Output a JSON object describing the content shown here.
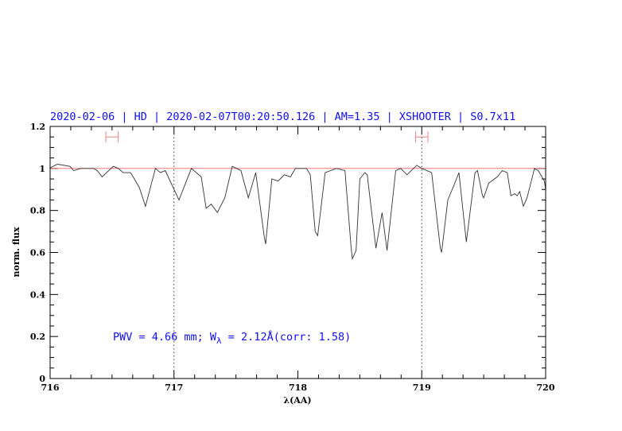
{
  "chart_data": {
    "type": "line",
    "title": "2020-02-06 | HD | 2020-02-07T00:20:50.126 | AM=1.35 | XSHOOTER | S0.7x11",
    "xlabel": "λ(AA)",
    "ylabel": "norm. flux",
    "xlim": [
      716,
      720
    ],
    "ylim": [
      0,
      1.2
    ],
    "xticks": [
      "716",
      "717",
      "718",
      "719",
      "720"
    ],
    "yticks": [
      "0",
      "0.2",
      "0.4",
      "0.6",
      "0.8",
      "1",
      "1.2"
    ],
    "grid": false,
    "continuum_level": 1.0,
    "vertical_markers": [
      717,
      719
    ],
    "intervals": [
      {
        "from": 716.45,
        "to": 716.55,
        "y": 1.15
      },
      {
        "from": 718.95,
        "to": 719.05,
        "y": 1.15
      }
    ],
    "annotation": {
      "pwv": "PWV = 4.66 mm; W",
      "subscript": "λ",
      "rest": " = 2.12Å(corr: 1.58)"
    },
    "colors": {
      "spectrum": "#333333",
      "continuum": "#ee6666",
      "intervals": "#f08080",
      "text": "#1010ee"
    },
    "series": [
      {
        "x": [
          716.0,
          716.01,
          716.06,
          716.16,
          716.19,
          716.25,
          716.35,
          716.38,
          716.42,
          716.51,
          716.55,
          716.59,
          716.65,
          716.72,
          716.77,
          716.85,
          716.89,
          716.93,
          717.04,
          717.14,
          717.22,
          717.26,
          717.3,
          717.35,
          717.41,
          717.47,
          717.54,
          717.6,
          717.66,
          717.73,
          717.74,
          717.79,
          717.84,
          717.89,
          717.94,
          717.98,
          718.07,
          718.1,
          718.14,
          718.16,
          718.22,
          718.31,
          718.38,
          718.43,
          718.44,
          718.47,
          718.5,
          718.54,
          718.56,
          718.63,
          718.68,
          718.72,
          718.79,
          718.83,
          718.88,
          718.96,
          719.0,
          719.08,
          719.15,
          719.16,
          719.21,
          719.26,
          719.3,
          719.36,
          719.43,
          719.45,
          719.49,
          719.5,
          719.54,
          719.61,
          719.65,
          719.69,
          719.72,
          719.75,
          719.77,
          719.79,
          719.82,
          719.85,
          719.91,
          719.94,
          719.99,
          720.0
        ],
        "y": [
          1.0,
          1.006,
          1.02,
          1.01,
          0.99,
          1.0,
          1.0,
          0.99,
          0.96,
          1.01,
          1.0,
          0.98,
          0.98,
          0.91,
          0.82,
          1.0,
          0.98,
          0.99,
          0.85,
          1.0,
          0.96,
          0.81,
          0.83,
          0.79,
          0.86,
          1.01,
          0.99,
          0.86,
          0.98,
          0.67,
          0.64,
          0.95,
          0.94,
          0.97,
          0.96,
          1.0,
          1.0,
          0.97,
          0.7,
          0.68,
          0.98,
          1.0,
          0.99,
          0.62,
          0.57,
          0.61,
          0.95,
          0.98,
          0.97,
          0.62,
          0.79,
          0.61,
          0.99,
          1.0,
          0.97,
          1.015,
          1.0,
          0.98,
          0.62,
          0.6,
          0.85,
          0.92,
          0.98,
          0.65,
          0.98,
          0.99,
          0.87,
          0.86,
          0.93,
          0.96,
          0.99,
          0.98,
          0.87,
          0.88,
          0.87,
          0.89,
          0.82,
          0.86,
          1.0,
          0.99,
          0.94,
          0.9
        ]
      }
    ]
  }
}
